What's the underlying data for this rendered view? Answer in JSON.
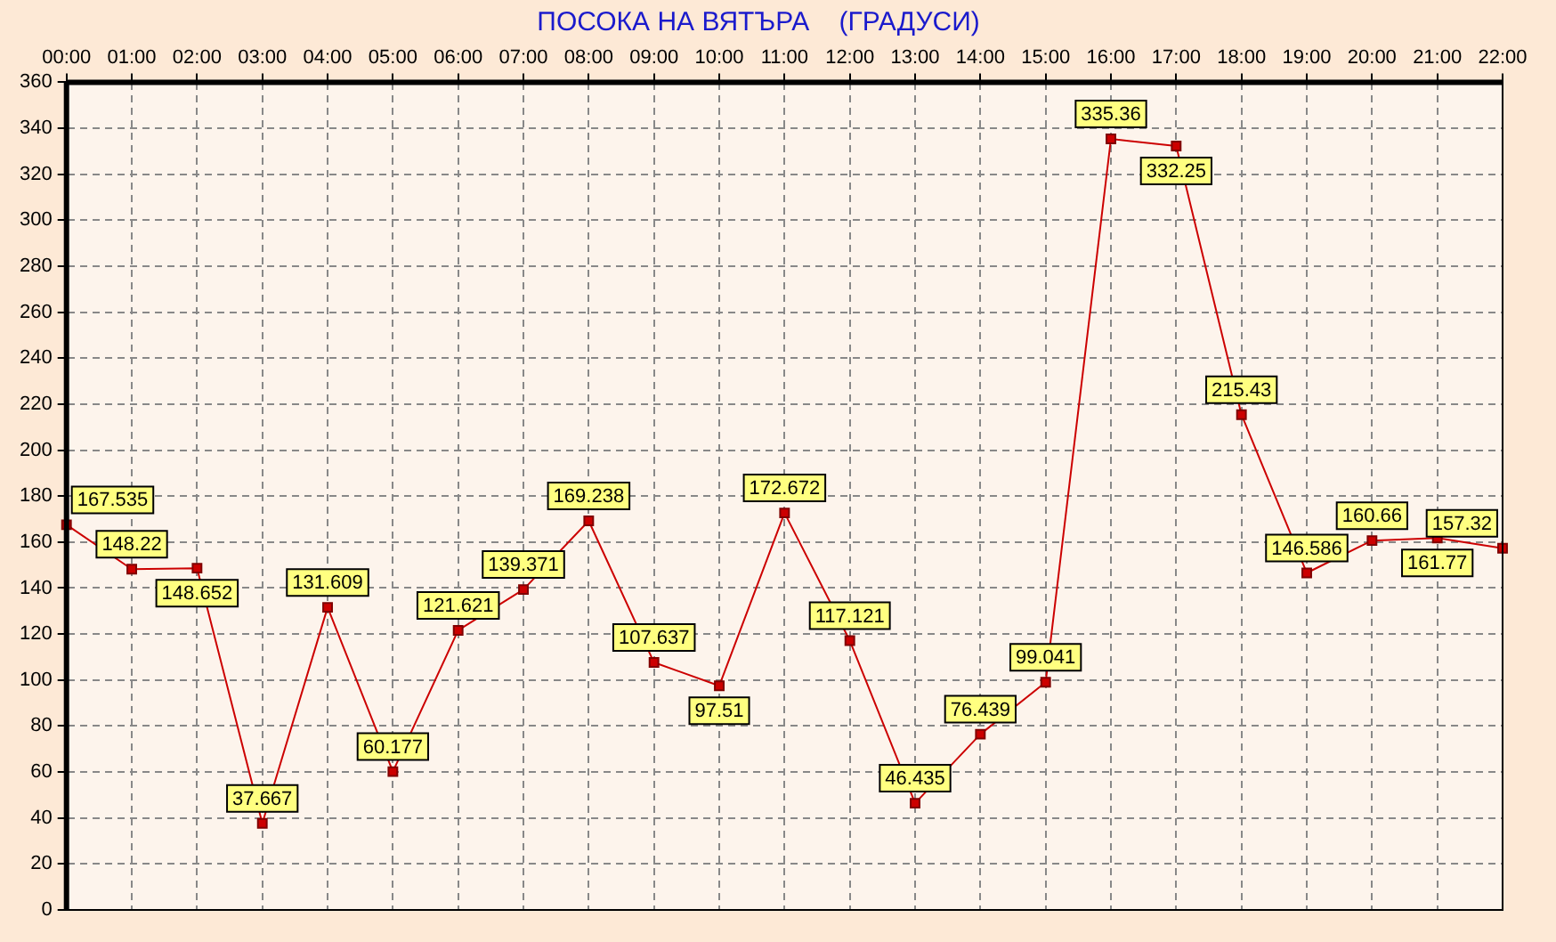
{
  "chart_data": {
    "type": "line",
    "title": "ПОСОКА НА ВЯТЪРА    (ГРАДУСИ)",
    "categories": [
      "00:00",
      "01:00",
      "02:00",
      "03:00",
      "04:00",
      "05:00",
      "06:00",
      "07:00",
      "08:00",
      "09:00",
      "10:00",
      "11:00",
      "12:00",
      "13:00",
      "14:00",
      "15:00",
      "16:00",
      "17:00",
      "18:00",
      "19:00",
      "20:00",
      "21:00",
      "22:00"
    ],
    "series": [
      {
        "color": "#cc0000",
        "values": [
          167.535,
          148.22,
          148.652,
          37.667,
          131.609,
          60.177,
          121.621,
          139.371,
          169.238,
          107.637,
          97.51,
          172.672,
          117.121,
          46.435,
          76.439,
          99.041,
          335.36,
          332.25,
          215.43,
          146.586,
          160.66,
          161.77,
          157.32
        ]
      }
    ],
    "ylim": [
      0,
      360
    ],
    "yticks": [
      0,
      20,
      40,
      60,
      80,
      100,
      120,
      140,
      160,
      180,
      200,
      220,
      240,
      260,
      280,
      300,
      320,
      340,
      360
    ],
    "grid": true,
    "legend": false,
    "marker": "square",
    "line_style": "solid",
    "data_labels": true
  }
}
